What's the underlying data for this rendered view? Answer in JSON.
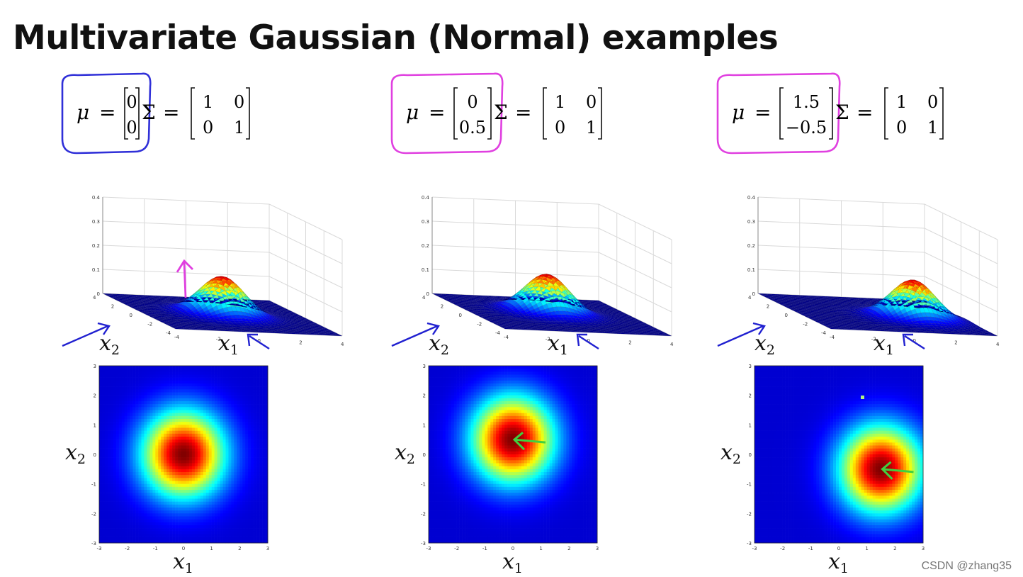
{
  "title": "Multivariate Gaussian (Normal) examples",
  "watermark": "CSDN @zhang35",
  "colors": {
    "jet_low": "#00007f",
    "jet_high": "#7f0000",
    "grid": "#d9d9d9"
  },
  "labels": {
    "mu": "μ",
    "equals": "=",
    "sigma": "Σ",
    "x": "x",
    "one": "1",
    "two": "2"
  },
  "surface_ticks": [
    "0.4",
    "0.3",
    "0.2",
    "0.1",
    "0"
  ],
  "floor_ticks_a": [
    "4",
    "2",
    "0",
    "-2",
    "-4"
  ],
  "floor_ticks_b": [
    "-4",
    "-2",
    "0",
    "2",
    "4"
  ],
  "contour_ticks_y": [
    "3",
    "2",
    "1",
    "0",
    "-1",
    "-2",
    "-3"
  ],
  "contour_ticks_x": [
    "-3",
    "-2",
    "-1",
    "0",
    "1",
    "2",
    "3"
  ],
  "panels": [
    {
      "mu": [
        "0",
        "0"
      ],
      "sigma": [
        [
          "1",
          "0"
        ],
        [
          "0",
          "1"
        ]
      ],
      "mean_x": 0,
      "mean_y": 0,
      "highlight": "#3030d8",
      "annotation": "#e040e0"
    },
    {
      "mu": [
        "0",
        "0.5"
      ],
      "sigma": [
        [
          "1",
          "0"
        ],
        [
          "0",
          "1"
        ]
      ],
      "mean_x": 0,
      "mean_y": 0.5,
      "highlight": "#e040e0",
      "annotation": "#40d040"
    },
    {
      "mu": [
        "1.5",
        "−0.5"
      ],
      "sigma": [
        [
          "1",
          "0"
        ],
        [
          "0",
          "1"
        ]
      ],
      "mean_x": 1.5,
      "mean_y": -0.5,
      "highlight": "#e040e0",
      "annotation": "#40d040"
    }
  ]
}
